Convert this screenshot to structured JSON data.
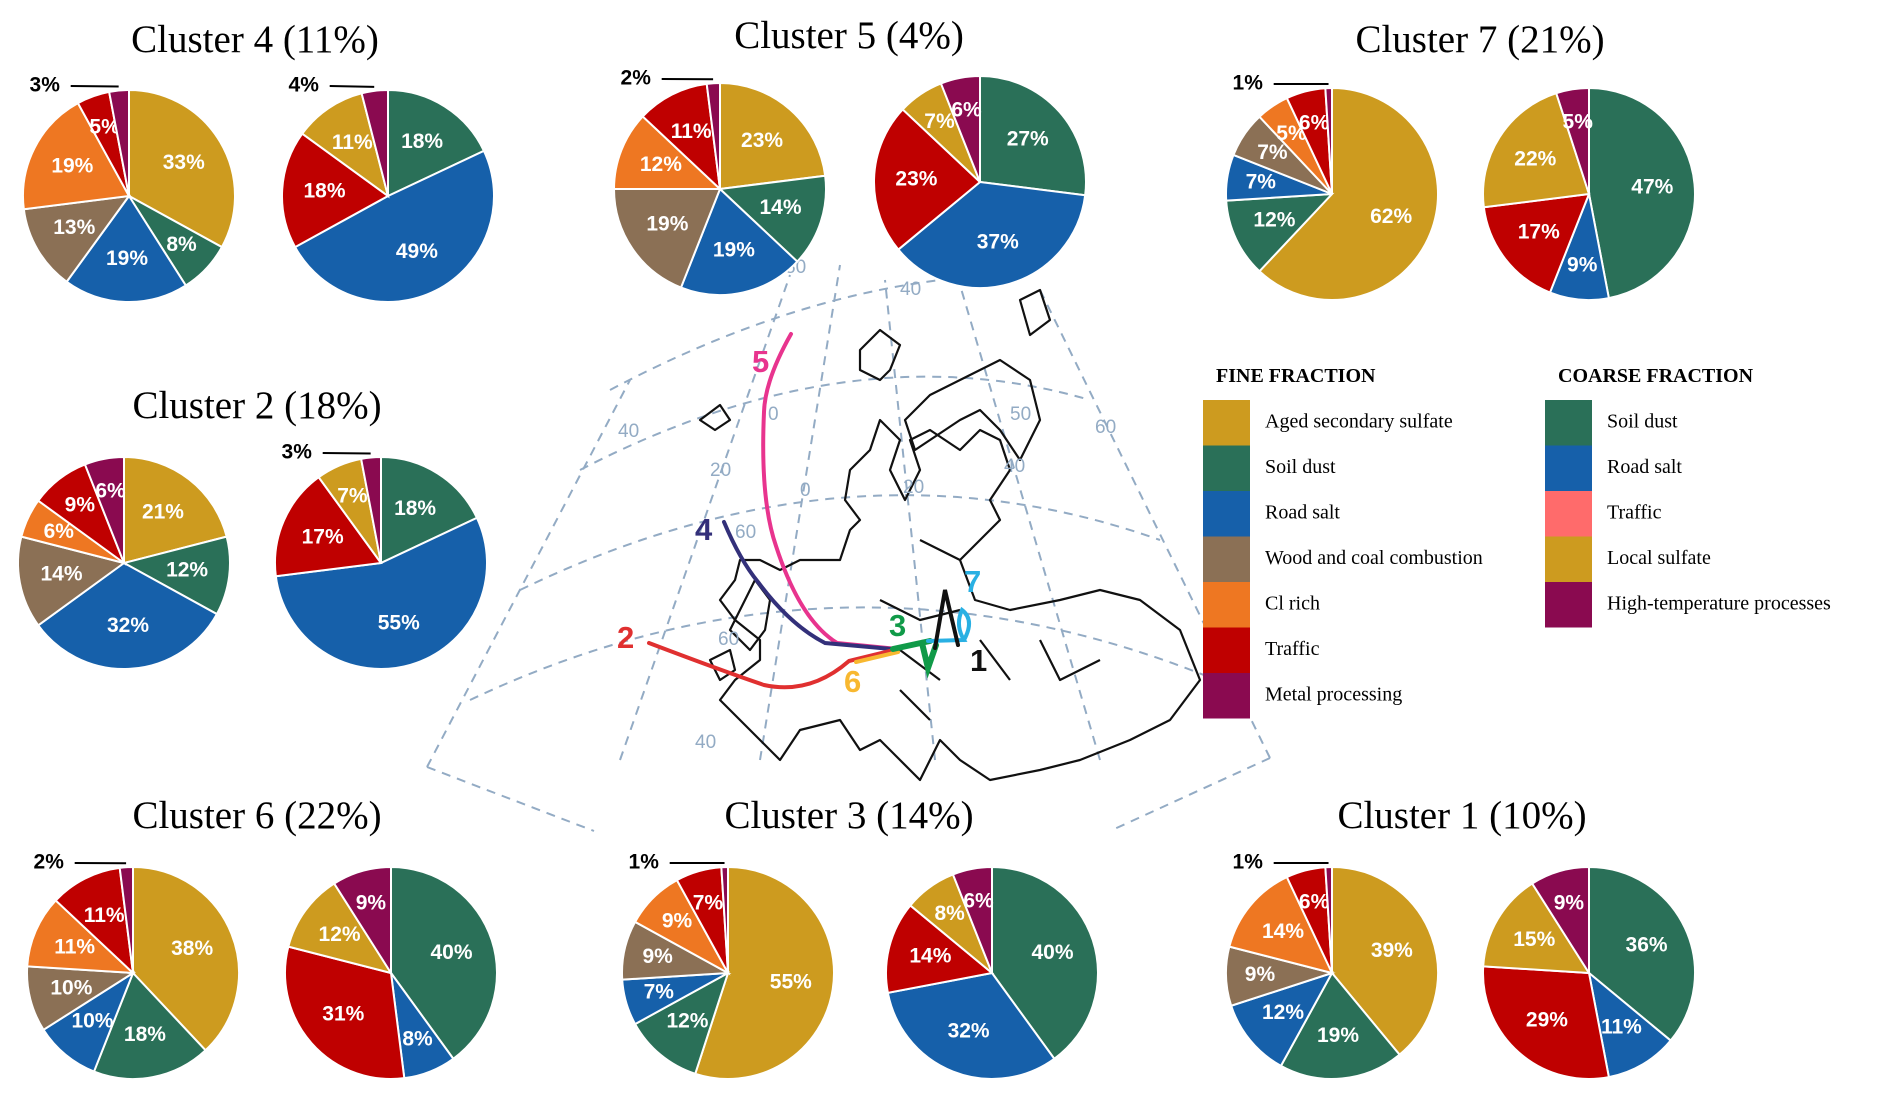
{
  "chart_data": {
    "type": "pie",
    "fine_categories": [
      "Aged secondary sulfate",
      "Soil dust",
      "Road salt",
      "Wood and coal combustion",
      "Cl  rich",
      "Traffic",
      "Metal processing"
    ],
    "coarse_categories": [
      "Soil dust",
      "Road salt",
      "Traffic",
      "Local sulfate",
      "High-temperature processes"
    ],
    "fine_colors": [
      "#CD9B1F",
      "#2A7058",
      "#1660AA",
      "#8B7055",
      "#EE7722",
      "#BF0000",
      "#8A0A50"
    ],
    "coarse_colors": [
      "#2A7058",
      "#1660AA",
      "#BF0000",
      "#CD9B1F",
      "#8A0A50"
    ],
    "clusters": [
      {
        "id": "4",
        "title": "Cluster 4 (11%)",
        "color": "#33307A",
        "fine": [
          33,
          8,
          19,
          13,
          19,
          5,
          3
        ],
        "coarse": [
          18,
          49,
          18,
          11,
          4
        ]
      },
      {
        "id": "5",
        "title": "Cluster 5 (4%)",
        "color": "#E8348E",
        "fine": [
          23,
          14,
          19,
          19,
          12,
          11,
          2
        ],
        "coarse": [
          27,
          37,
          23,
          7,
          6
        ]
      },
      {
        "id": "7",
        "title": "Cluster 7 (21%)",
        "color": "#29B0E3",
        "fine": [
          62,
          12,
          7,
          7,
          5,
          6,
          1
        ],
        "coarse": [
          47,
          9,
          17,
          22,
          5
        ]
      },
      {
        "id": "2",
        "title": "Cluster 2 (18%)",
        "color": "#E03030",
        "fine": [
          21,
          12,
          32,
          14,
          6,
          9,
          6
        ],
        "coarse": [
          18,
          55,
          17,
          7,
          3
        ]
      },
      {
        "id": "6",
        "title": "Cluster 6 (22%)",
        "color": "#F8B830",
        "fine": [
          38,
          18,
          10,
          10,
          11,
          11,
          2
        ],
        "coarse": [
          40,
          8,
          31,
          12,
          9
        ]
      },
      {
        "id": "3",
        "title": "Cluster 3 (14%)",
        "color": "#109A48",
        "fine": [
          55,
          12,
          7,
          9,
          9,
          7,
          1
        ],
        "coarse": [
          40,
          32,
          14,
          8,
          6
        ]
      },
      {
        "id": "1",
        "title": "Cluster 1 (10%)",
        "color": "#111111",
        "fine": [
          39,
          19,
          12,
          9,
          14,
          6,
          1
        ],
        "coarse": [
          36,
          11,
          29,
          15,
          9
        ]
      }
    ]
  },
  "legend": {
    "fine_header": "FINE FRACTION",
    "coarse_header": "COARSE FRACTION",
    "fine": [
      {
        "label": "Aged secondary sulfate",
        "color": "#CD9B1F"
      },
      {
        "label": "Soil dust",
        "color": "#2A7058"
      },
      {
        "label": "Road salt",
        "color": "#1660AA"
      },
      {
        "label": "Wood and coal combustion",
        "color": "#8B7055"
      },
      {
        "label": "Cl  rich",
        "color": "#EE7722"
      },
      {
        "label": "Traffic",
        "color": "#BF0000"
      },
      {
        "label": "Metal processing",
        "color": "#8A0A50"
      }
    ],
    "coarse": [
      {
        "label": "Soil dust",
        "color": "#2A7058"
      },
      {
        "label": "Road salt",
        "color": "#1660AA"
      },
      {
        "label": "Traffic",
        "color": "#FF6B6B"
      },
      {
        "label": "Local sulfate",
        "color": "#CD9B1F"
      },
      {
        "label": "High-temperature processes",
        "color": "#8A0A50"
      }
    ]
  },
  "map": {
    "grid_labels": [
      "80",
      "40",
      "20",
      "0",
      "20",
      "60",
      "0",
      "40",
      "60",
      "60",
      "40",
      "50",
      "40"
    ],
    "trajectory_labels": [
      "5",
      "4",
      "2",
      "6",
      "3",
      "7",
      "1"
    ]
  }
}
